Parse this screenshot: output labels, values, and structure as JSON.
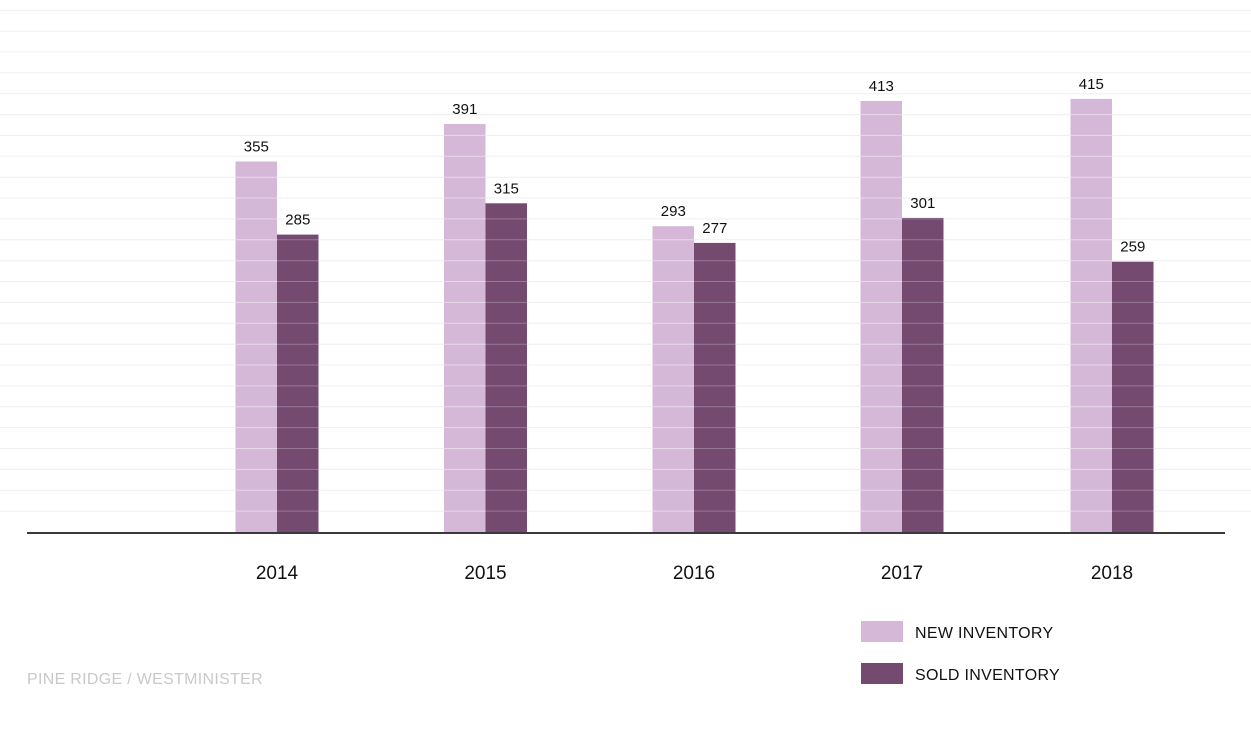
{
  "footer": {
    "text": "PINE RIDGE / WESTMINISTER",
    "color": "#c9c9c9"
  },
  "chart_data": {
    "type": "bar",
    "title": "",
    "xlabel": "",
    "ylabel": "",
    "categories": [
      "2014",
      "2015",
      "2016",
      "2017",
      "2018"
    ],
    "series": [
      {
        "name": "NEW INVENTORY",
        "color": "#d5b8d8",
        "values": [
          355,
          391,
          293,
          413,
          415
        ]
      },
      {
        "name": "SOLD INVENTORY",
        "color": "#754a71",
        "values": [
          285,
          315,
          277,
          301,
          259
        ]
      }
    ],
    "ylim": [
      0,
      480
    ],
    "grid": true,
    "grid_step": 20,
    "axis_color": "#3a3a3a",
    "grid_color": "#efefef",
    "data_labels": true,
    "legend_position": "bottom-right"
  }
}
